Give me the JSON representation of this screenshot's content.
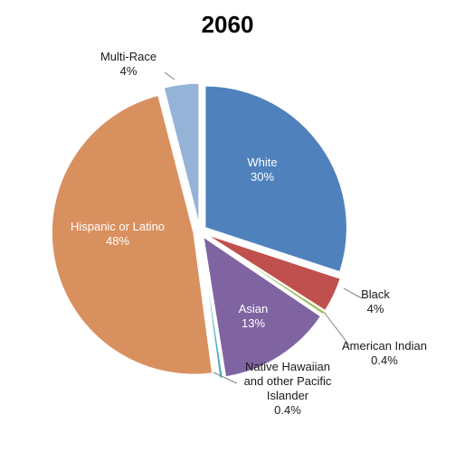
{
  "chart_data": {
    "type": "pie",
    "title": "2060",
    "slices": [
      {
        "label": "White",
        "value_label": "30%",
        "value": 30,
        "color": "#4f81bd"
      },
      {
        "label": "Black",
        "value_label": "4%",
        "value": 4,
        "color": "#c0504d"
      },
      {
        "label": "American Indian",
        "value_label": "0.4%",
        "value": 0.4,
        "color": "#9bbb59"
      },
      {
        "label": "Asian",
        "value_label": "13%",
        "value": 13,
        "color": "#8064a2"
      },
      {
        "label": "Native Hawaiian and other Pacific Islander",
        "value_label": "0.4%",
        "value": 0.4,
        "color": "#4bacc6"
      },
      {
        "label": "Hispanic or Latino",
        "value_label": "48%",
        "value": 48,
        "color": "#d9905f"
      },
      {
        "label": "Multi-Race",
        "value_label": "4%",
        "value": 4,
        "color": "#95b3d7"
      }
    ]
  }
}
